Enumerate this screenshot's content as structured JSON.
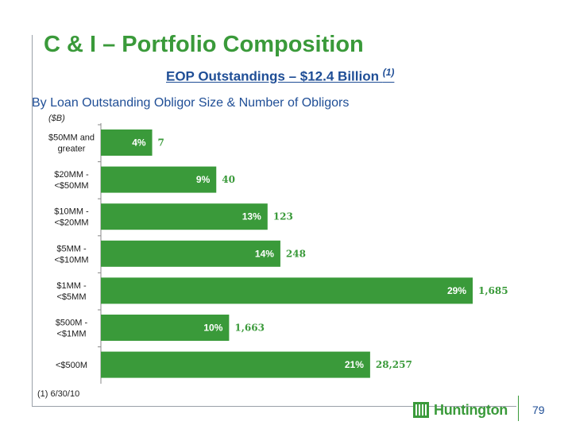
{
  "slide": {
    "title": "C & I – Portfolio Composition",
    "subtitle": "EOP Outstandings – $12.4 Billion",
    "subtitle_note": "(1)",
    "footnote": "(1)  6/30/10",
    "logo_text": "Huntington",
    "page_number": "79"
  },
  "chart_data": {
    "type": "bar",
    "orientation": "horizontal",
    "title": "By Loan Outstanding Obligor Size & Number of Obligors",
    "unit": "($B)",
    "categories": [
      [
        "$50MM and",
        "greater"
      ],
      [
        "$20MM -",
        "<$50MM"
      ],
      [
        "$10MM -",
        "<$20MM"
      ],
      [
        "$5MM -",
        "<$10MM"
      ],
      [
        "$1MM -",
        "<$5MM"
      ],
      [
        "$500M -",
        "<$1MM"
      ],
      [
        "<$500M"
      ]
    ],
    "series": [
      {
        "values": [
          4,
          9,
          13,
          14,
          29,
          10,
          21
        ],
        "labels": [
          "4%",
          "9%",
          "13%",
          "14%",
          "29%",
          "10%",
          "21%"
        ]
      }
    ],
    "obligor_counts": [
      "7",
      "40",
      "123",
      "248",
      "1,685",
      "1,663",
      "28,257"
    ],
    "bar_color": "#3a9a3a",
    "count_color": "#3a9a3a",
    "xlim": [
      0,
      29
    ]
  }
}
